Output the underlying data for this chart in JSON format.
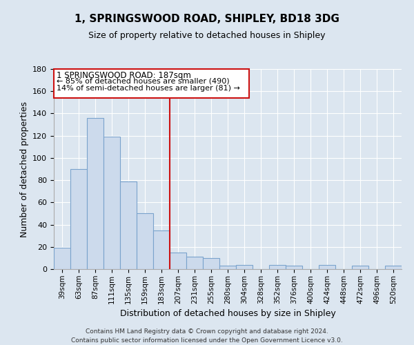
{
  "title": "1, SPRINGSWOOD ROAD, SHIPLEY, BD18 3DG",
  "subtitle": "Size of property relative to detached houses in Shipley",
  "xlabel": "Distribution of detached houses by size in Shipley",
  "ylabel": "Number of detached properties",
  "categories": [
    "39sqm",
    "63sqm",
    "87sqm",
    "111sqm",
    "135sqm",
    "159sqm",
    "183sqm",
    "207sqm",
    "231sqm",
    "255sqm",
    "280sqm",
    "304sqm",
    "328sqm",
    "352sqm",
    "376sqm",
    "400sqm",
    "424sqm",
    "448sqm",
    "472sqm",
    "496sqm",
    "520sqm"
  ],
  "values": [
    19,
    90,
    136,
    119,
    79,
    50,
    35,
    15,
    11,
    10,
    3,
    4,
    0,
    4,
    3,
    0,
    4,
    0,
    3,
    0,
    3
  ],
  "bar_color": "#ccdaec",
  "bar_edge_color": "#7aa3cc",
  "vline_color": "#cc1111",
  "vline_index": 6,
  "annotation_title": "1 SPRINGSWOOD ROAD: 187sqm",
  "annotation_line1": "← 85% of detached houses are smaller (490)",
  "annotation_line2": "14% of semi-detached houses are larger (81) →",
  "annotation_box_color": "#cc1111",
  "ylim": [
    0,
    180
  ],
  "yticks": [
    0,
    20,
    40,
    60,
    80,
    100,
    120,
    140,
    160,
    180
  ],
  "footer1": "Contains HM Land Registry data © Crown copyright and database right 2024.",
  "footer2": "Contains public sector information licensed under the Open Government Licence v3.0.",
  "bg_color": "#dce6f0",
  "plot_bg_color": "#dce6f0",
  "grid_color": "#ffffff",
  "title_fontsize": 11,
  "subtitle_fontsize": 9,
  "ylabel_fontsize": 9,
  "xlabel_fontsize": 9
}
